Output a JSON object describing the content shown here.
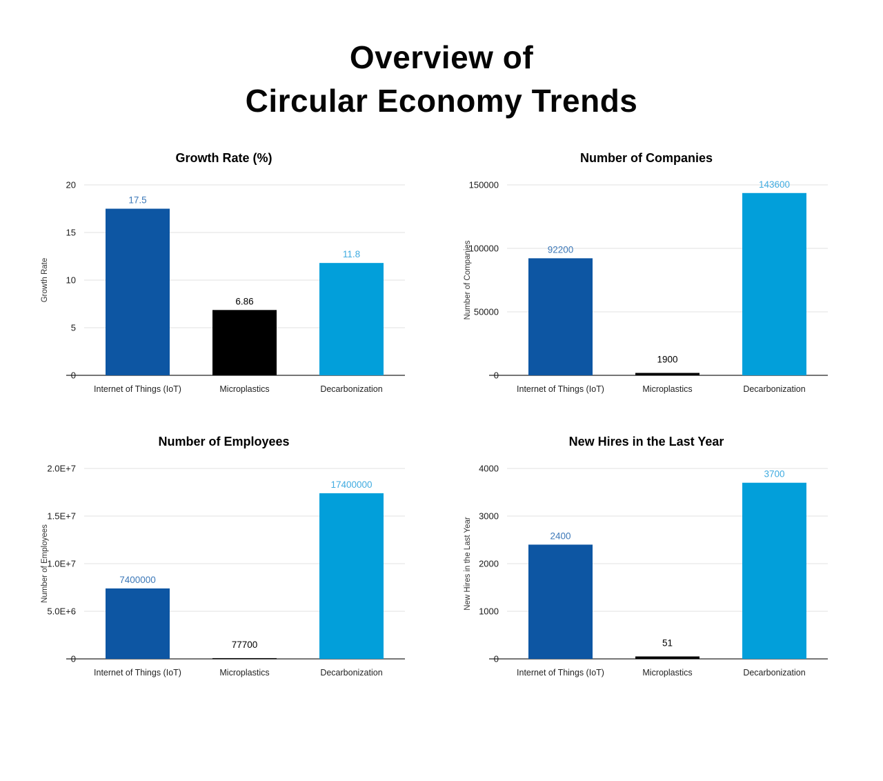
{
  "header": {
    "lines": [
      "Overview of",
      "Circular Economy Trends"
    ]
  },
  "palette": {
    "background": "#ffffff",
    "dark_blue": "#0d56a3",
    "black": "#000000",
    "light_blue": "#029fda",
    "gridline": "#e2e2e2",
    "axis_line": "#757575",
    "tick_text": "#1a1a1a",
    "category_text": "#222222",
    "y_axis_title_text": "#333333"
  },
  "chart_data": [
    {
      "type": "bar",
      "title": "Growth Rate (%)",
      "xlabel": "",
      "ylabel": "Growth Rate",
      "categories": [
        "Internet of Things (IoT)",
        "Microplastics",
        "Decarbonization"
      ],
      "values": [
        17.5,
        6.86,
        11.8
      ],
      "value_labels": [
        "17.5",
        "6.86",
        "11.8"
      ],
      "bar_colors": [
        "#0d56a3",
        "#000000",
        "#029fda"
      ],
      "label_colors": [
        "#3c78b8",
        "#000000",
        "#3fabe0"
      ],
      "ylim": [
        0,
        20
      ],
      "yticks": [
        0,
        5,
        10,
        15,
        20
      ],
      "ytick_labels": [
        "0",
        "5",
        "10",
        "15",
        "20"
      ],
      "grid": true,
      "legend": "none"
    },
    {
      "type": "bar",
      "title": "Number of Companies",
      "xlabel": "",
      "ylabel": "Number of Companies",
      "categories": [
        "Internet of Things (IoT)",
        "Microplastics",
        "Decarbonization"
      ],
      "values": [
        92200,
        1900,
        143600
      ],
      "value_labels": [
        "92200",
        "1900",
        "143600"
      ],
      "bar_colors": [
        "#0d56a3",
        "#000000",
        "#029fda"
      ],
      "label_colors": [
        "#3c78b8",
        "#000000",
        "#3fabe0"
      ],
      "ylim": [
        0,
        150000
      ],
      "yticks": [
        0,
        50000,
        100000,
        150000
      ],
      "ytick_labels": [
        "0",
        "50000",
        "100000",
        "150000"
      ],
      "grid": true,
      "legend": "none"
    },
    {
      "type": "bar",
      "title": "Number of Employees",
      "xlabel": "",
      "ylabel": "Number of Employees",
      "categories": [
        "Internet of Things (IoT)",
        "Microplastics",
        "Decarbonization"
      ],
      "values": [
        7400000,
        77700,
        17400000
      ],
      "value_labels": [
        "7400000",
        "77700",
        "17400000"
      ],
      "bar_colors": [
        "#0d56a3",
        "#000000",
        "#029fda"
      ],
      "label_colors": [
        "#3c78b8",
        "#000000",
        "#3fabe0"
      ],
      "ylim": [
        0,
        20000000
      ],
      "yticks": [
        0,
        5000000,
        10000000,
        15000000,
        20000000
      ],
      "ytick_labels": [
        "0",
        "5.0E+6",
        "1.0E+7",
        "1.5E+7",
        "2.0E+7"
      ],
      "grid": true,
      "legend": "none"
    },
    {
      "type": "bar",
      "title": "New Hires in the Last Year",
      "xlabel": "",
      "ylabel": "New Hires in the Last Year",
      "categories": [
        "Internet of Things (IoT)",
        "Microplastics",
        "Decarbonization"
      ],
      "values": [
        2400,
        51,
        3700
      ],
      "value_labels": [
        "2400",
        "51",
        "3700"
      ],
      "bar_colors": [
        "#0d56a3",
        "#000000",
        "#029fda"
      ],
      "label_colors": [
        "#3c78b8",
        "#000000",
        "#3fabe0"
      ],
      "ylim": [
        0,
        4000
      ],
      "yticks": [
        0,
        1000,
        2000,
        3000,
        4000
      ],
      "ytick_labels": [
        "0",
        "1000",
        "2000",
        "3000",
        "4000"
      ],
      "grid": true,
      "legend": "none"
    }
  ]
}
